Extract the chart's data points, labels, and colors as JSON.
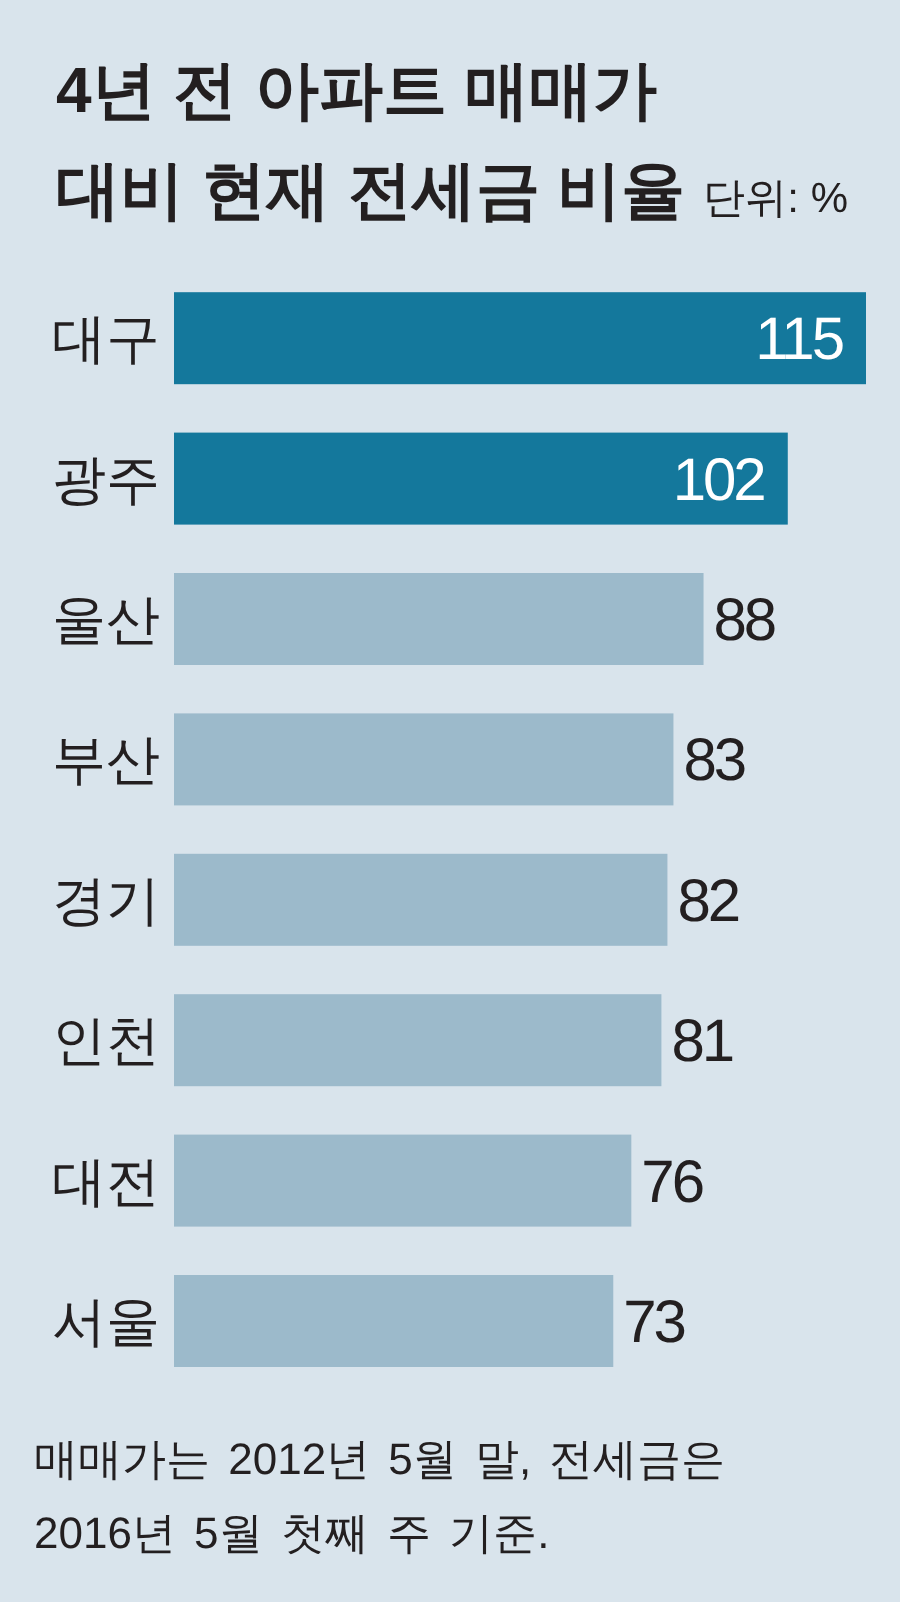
{
  "chart_data": {
    "type": "bar",
    "orientation": "horizontal",
    "title": "4년 전 아파트 매매가 대비 현재 전세금 비율",
    "subtitle": "단위: %",
    "categories": [
      "대구",
      "광주",
      "울산",
      "부산",
      "경기",
      "인천",
      "대전",
      "서울"
    ],
    "values": [
      115,
      102,
      88,
      83,
      82,
      81,
      76,
      73
    ],
    "colors": [
      "#14789c",
      "#14789c",
      "#9cbacb",
      "#9cbacb",
      "#9cbacb",
      "#9cbacb",
      "#9cbacb",
      "#9cbacb"
    ],
    "data_labels": true,
    "annotations": [
      "매매가는 2012년 5월 말, 전세금은 2016년 5월 첫째 주 기준."
    ]
  }
}
